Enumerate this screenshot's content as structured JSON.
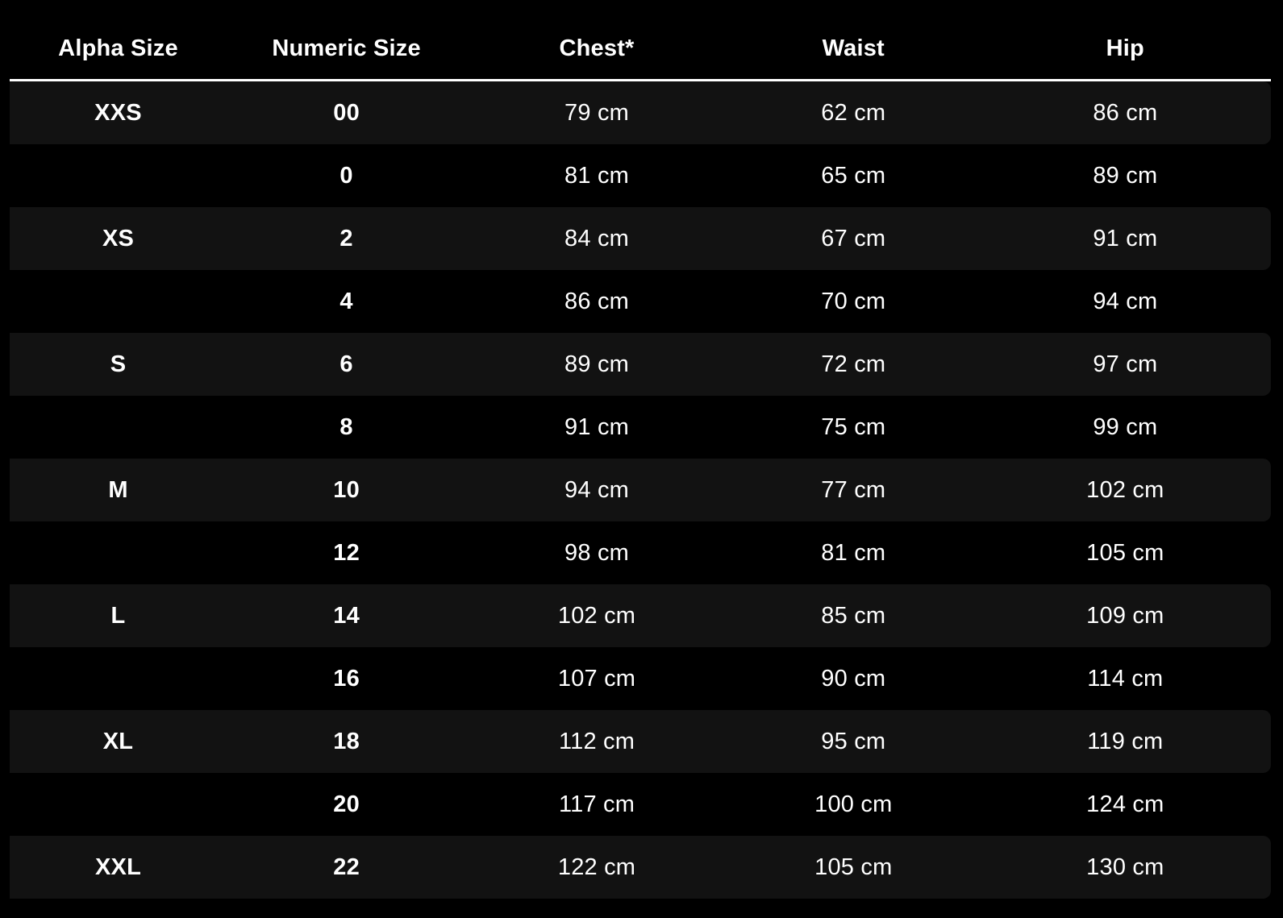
{
  "chart_data": {
    "type": "table",
    "columns": [
      "Alpha Size",
      "Numeric Size",
      "Chest*",
      "Waist",
      "Hip"
    ],
    "rows": [
      {
        "cells": [
          "XXS",
          "00",
          "79 cm",
          "62 cm",
          "86 cm"
        ],
        "highlight": true
      },
      {
        "cells": [
          "",
          "0",
          "81 cm",
          "65 cm",
          "89 cm"
        ],
        "highlight": false
      },
      {
        "cells": [
          "XS",
          "2",
          "84 cm",
          "67 cm",
          "91 cm"
        ],
        "highlight": true
      },
      {
        "cells": [
          "",
          "4",
          "86 cm",
          "70 cm",
          "94 cm"
        ],
        "highlight": false
      },
      {
        "cells": [
          "S",
          "6",
          "89 cm",
          "72 cm",
          "97 cm"
        ],
        "highlight": true
      },
      {
        "cells": [
          "",
          "8",
          "91 cm",
          "75 cm",
          "99 cm"
        ],
        "highlight": false
      },
      {
        "cells": [
          "M",
          "10",
          "94 cm",
          "77 cm",
          "102 cm"
        ],
        "highlight": true
      },
      {
        "cells": [
          "",
          "12",
          "98 cm",
          "81 cm",
          "105 cm"
        ],
        "highlight": false
      },
      {
        "cells": [
          "L",
          "14",
          "102 cm",
          "85 cm",
          "109 cm"
        ],
        "highlight": true
      },
      {
        "cells": [
          "",
          "16",
          "107 cm",
          "90 cm",
          "114 cm"
        ],
        "highlight": false
      },
      {
        "cells": [
          "XL",
          "18",
          "112 cm",
          "95 cm",
          "119 cm"
        ],
        "highlight": true
      },
      {
        "cells": [
          "",
          "20",
          "117 cm",
          "100 cm",
          "124 cm"
        ],
        "highlight": false
      },
      {
        "cells": [
          "XXL",
          "22",
          "122 cm",
          "105 cm",
          "130 cm"
        ],
        "highlight": true
      }
    ],
    "layout": {
      "grid": "alternating-row-bands",
      "legend_position": "none",
      "units": "cm"
    }
  },
  "colors": {
    "background": "#000000",
    "row_band": "#121212",
    "text": "#ffffff",
    "header_divider": "#ffffff"
  }
}
